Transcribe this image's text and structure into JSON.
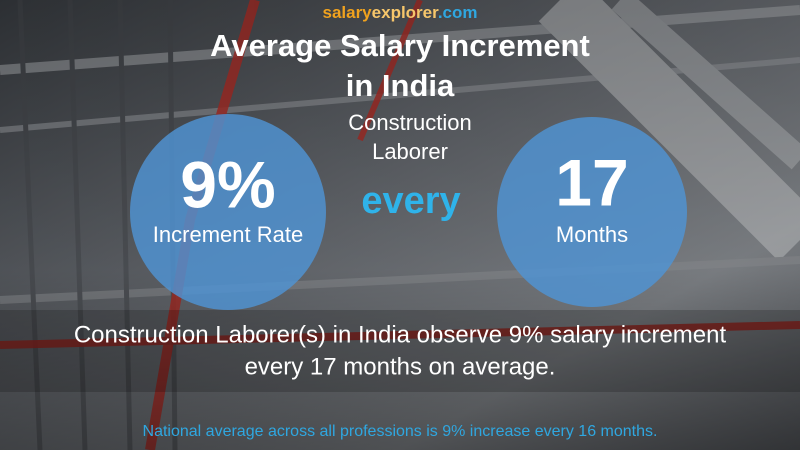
{
  "logo": {
    "parts": [
      "salary",
      "explorer",
      ".com"
    ]
  },
  "title": {
    "lines": [
      "Average Salary Increment",
      "in India"
    ]
  },
  "job": {
    "lines": [
      "Construction",
      "Laborer"
    ]
  },
  "rate": {
    "value": "9%",
    "label": "Increment Rate"
  },
  "connector": "every",
  "period": {
    "value": "17",
    "label": "Months"
  },
  "description": {
    "lines": [
      "Construction Laborer(s) in India observe 9% salary increment",
      "every 17 months on average."
    ]
  },
  "footer": "National average across all professions is 9% increase every 16 months."
}
